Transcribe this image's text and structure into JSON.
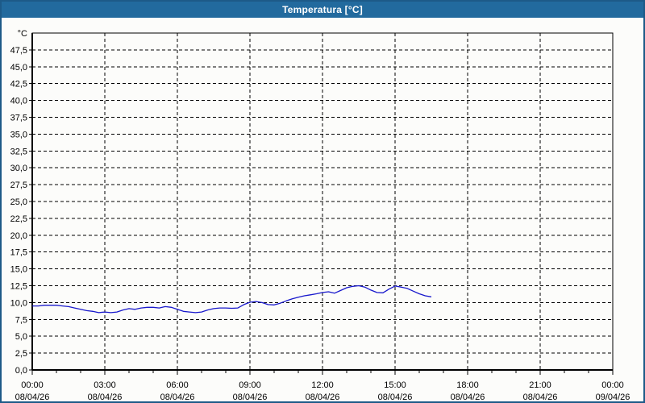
{
  "window": {
    "title": "Temperatura [°C]"
  },
  "chart_data": {
    "type": "line",
    "title": "Temperatura [°C]",
    "unit_label": "°C",
    "grid": "dashed",
    "legend": "none",
    "colors": {
      "titlebar": "#226a9e",
      "window_border": "#1d5a88",
      "background": "#fcfcfa",
      "grid": "#000000",
      "line": "#1818cc"
    },
    "y_axis": {
      "min": 0,
      "max": 50,
      "step": 2.5,
      "tick_labels": [
        "0,0",
        "2,5",
        "5,0",
        "7,5",
        "10,0",
        "12,5",
        "15,0",
        "17,5",
        "20,0",
        "22,5",
        "25,0",
        "27,5",
        "30,0",
        "32,5",
        "35,0",
        "37,5",
        "40,0",
        "42,5",
        "45,0",
        "47,5"
      ]
    },
    "x_axis": {
      "range_hours": 24,
      "major_step_hours": 3,
      "minor_step_hours": 1,
      "ticks": [
        {
          "time": "00:00",
          "date": "08/04/26"
        },
        {
          "time": "03:00",
          "date": "08/04/26"
        },
        {
          "time": "06:00",
          "date": "08/04/26"
        },
        {
          "time": "09:00",
          "date": "08/04/26"
        },
        {
          "time": "12:00",
          "date": "08/04/26"
        },
        {
          "time": "15:00",
          "date": "08/04/26"
        },
        {
          "time": "18:00",
          "date": "08/04/26"
        },
        {
          "time": "21:00",
          "date": "08/04/26"
        },
        {
          "time": "00:00",
          "date": "09/04/26"
        }
      ]
    },
    "series": [
      {
        "name": "Temperatura",
        "color": "#1818cc",
        "start_hour": 0,
        "interval_hours": 0.25,
        "values": [
          9.5,
          9.5,
          9.6,
          9.6,
          9.6,
          9.5,
          9.4,
          9.2,
          9.0,
          8.8,
          8.7,
          8.5,
          8.6,
          8.5,
          8.6,
          8.9,
          9.1,
          9.0,
          9.2,
          9.3,
          9.3,
          9.2,
          9.4,
          9.3,
          9.0,
          8.7,
          8.6,
          8.5,
          8.6,
          8.9,
          9.1,
          9.2,
          9.2,
          9.15,
          9.2,
          9.7,
          10.05,
          10.15,
          10.0,
          9.7,
          9.65,
          9.9,
          10.25,
          10.55,
          10.8,
          11.0,
          11.15,
          11.3,
          11.5,
          11.6,
          11.4,
          11.8,
          12.2,
          12.4,
          12.5,
          12.3,
          11.85,
          11.5,
          11.45,
          12.0,
          12.45,
          12.3,
          12.1,
          11.7,
          11.3,
          11.0,
          10.85
        ]
      }
    ]
  }
}
